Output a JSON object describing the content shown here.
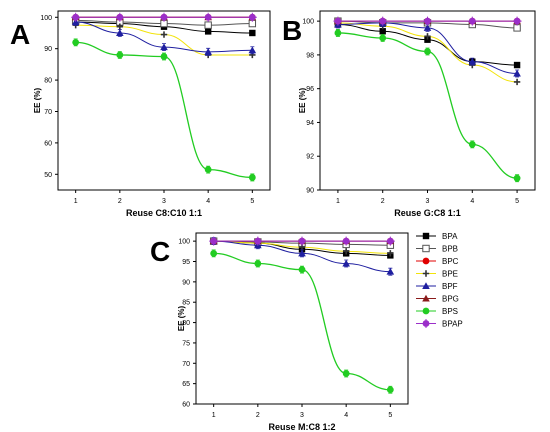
{
  "colors": {
    "BPA": "#000000",
    "BPB": "#555555",
    "BPC": "#e00000",
    "BPE": "#f2e30a",
    "BPF": "#1f1fa0",
    "BPG": "#8a1a1a",
    "BPS": "#22cc22",
    "BPAP": "#9b2fc9"
  },
  "markers": {
    "BPA": "filled-square",
    "BPB": "open-square",
    "BPC": "filled-circle",
    "BPE": "plus-cross",
    "BPF": "filled-triangle",
    "BPG": "filled-triangle",
    "BPS": "filled-circle",
    "BPAP": "filled-circle-cross"
  },
  "legend": {
    "placement": "right of panel C",
    "entries": [
      "BPA",
      "BPB",
      "BPC",
      "BPE",
      "BPF",
      "BPG",
      "BPS",
      "BPAP"
    ]
  },
  "chart_data": [
    {
      "panel": "A",
      "type": "scatter",
      "xlabel": "Reuse C8:C10 1:1",
      "ylabel": "EE (%)",
      "x": [
        1,
        2,
        3,
        4,
        5
      ],
      "xticks": [
        "1",
        "2",
        "3",
        "4",
        "5"
      ],
      "xlim": [
        0.6,
        5.4
      ],
      "ylim": [
        45,
        102
      ],
      "yticks": [
        "50",
        "60",
        "70",
        "80",
        "90",
        "100"
      ],
      "yticks_values": [
        50,
        60,
        70,
        80,
        90,
        100
      ],
      "grid": false,
      "series": [
        {
          "name": "BPA",
          "values": [
            98.5,
            98.0,
            97.0,
            95.5,
            95.0
          ]
        },
        {
          "name": "BPB",
          "values": [
            99.0,
            98.5,
            98.0,
            97.5,
            98.0
          ]
        },
        {
          "name": "BPC",
          "values": [
            100,
            100,
            100,
            100,
            100
          ]
        },
        {
          "name": "BPE",
          "values": [
            97.5,
            97.0,
            94.5,
            88.0,
            88.0
          ]
        },
        {
          "name": "BPF",
          "values": [
            98.5,
            95.0,
            90.5,
            89.0,
            89.5
          ]
        },
        {
          "name": "BPG",
          "values": [
            100,
            100,
            100,
            100,
            100
          ]
        },
        {
          "name": "BPS",
          "values": [
            92.0,
            88.0,
            87.5,
            51.5,
            49.0
          ]
        },
        {
          "name": "BPAP",
          "values": [
            100,
            100,
            100,
            100,
            100
          ]
        }
      ]
    },
    {
      "panel": "B",
      "type": "scatter",
      "xlabel": "Reuse G:C8 1:1",
      "ylabel": "EE (%)",
      "x": [
        1,
        2,
        3,
        4,
        5
      ],
      "xticks": [
        "1",
        "2",
        "3",
        "4",
        "5"
      ],
      "xlim": [
        0.6,
        5.4
      ],
      "ylim": [
        90,
        100.6
      ],
      "yticks": [
        "90",
        "92",
        "94",
        "96",
        "98",
        "100"
      ],
      "yticks_values": [
        90,
        92,
        94,
        96,
        98,
        100
      ],
      "grid": false,
      "series": [
        {
          "name": "BPA",
          "values": [
            99.8,
            99.4,
            98.9,
            97.6,
            97.4
          ]
        },
        {
          "name": "BPB",
          "values": [
            100,
            99.9,
            99.9,
            99.8,
            99.6
          ]
        },
        {
          "name": "BPC",
          "values": [
            100,
            100,
            100,
            100,
            100
          ]
        },
        {
          "name": "BPE",
          "values": [
            99.9,
            99.7,
            99.1,
            97.4,
            96.4
          ]
        },
        {
          "name": "BPF",
          "values": [
            99.8,
            99.9,
            99.6,
            97.6,
            96.9
          ]
        },
        {
          "name": "BPG",
          "values": [
            100,
            100,
            100,
            100,
            100
          ]
        },
        {
          "name": "BPS",
          "values": [
            99.3,
            99.0,
            98.2,
            92.7,
            90.7
          ]
        },
        {
          "name": "BPAP",
          "values": [
            100,
            100,
            100,
            100,
            100
          ]
        }
      ]
    },
    {
      "panel": "C",
      "type": "scatter",
      "xlabel": "Reuse M:C8 1:2",
      "ylabel": "EE (%)",
      "x": [
        1,
        2,
        3,
        4,
        5
      ],
      "xticks": [
        "1",
        "2",
        "3",
        "4",
        "5"
      ],
      "xlim": [
        0.6,
        5.4
      ],
      "ylim": [
        60,
        102
      ],
      "yticks": [
        "60",
        "65",
        "70",
        "75",
        "80",
        "85",
        "90",
        "95",
        "100"
      ],
      "yticks_values": [
        60,
        65,
        70,
        75,
        80,
        85,
        90,
        95,
        100
      ],
      "grid": false,
      "series": [
        {
          "name": "BPA",
          "values": [
            100,
            99.5,
            98.0,
            97.0,
            96.5
          ]
        },
        {
          "name": "BPB",
          "values": [
            100,
            99.8,
            99.5,
            99.2,
            99.0
          ]
        },
        {
          "name": "BPC",
          "values": [
            100,
            100,
            100,
            100,
            100
          ]
        },
        {
          "name": "BPE",
          "values": [
            100,
            99.5,
            98.5,
            97.5,
            97.0
          ]
        },
        {
          "name": "BPF",
          "values": [
            100,
            99.0,
            97.0,
            94.5,
            92.5
          ]
        },
        {
          "name": "BPG",
          "values": [
            100,
            100,
            100,
            100,
            100
          ]
        },
        {
          "name": "BPS",
          "values": [
            97.0,
            94.5,
            93.0,
            67.5,
            63.5
          ]
        },
        {
          "name": "BPAP",
          "values": [
            100,
            100,
            100,
            100,
            100
          ]
        }
      ]
    }
  ],
  "panel_labels": [
    "A",
    "B",
    "C"
  ]
}
